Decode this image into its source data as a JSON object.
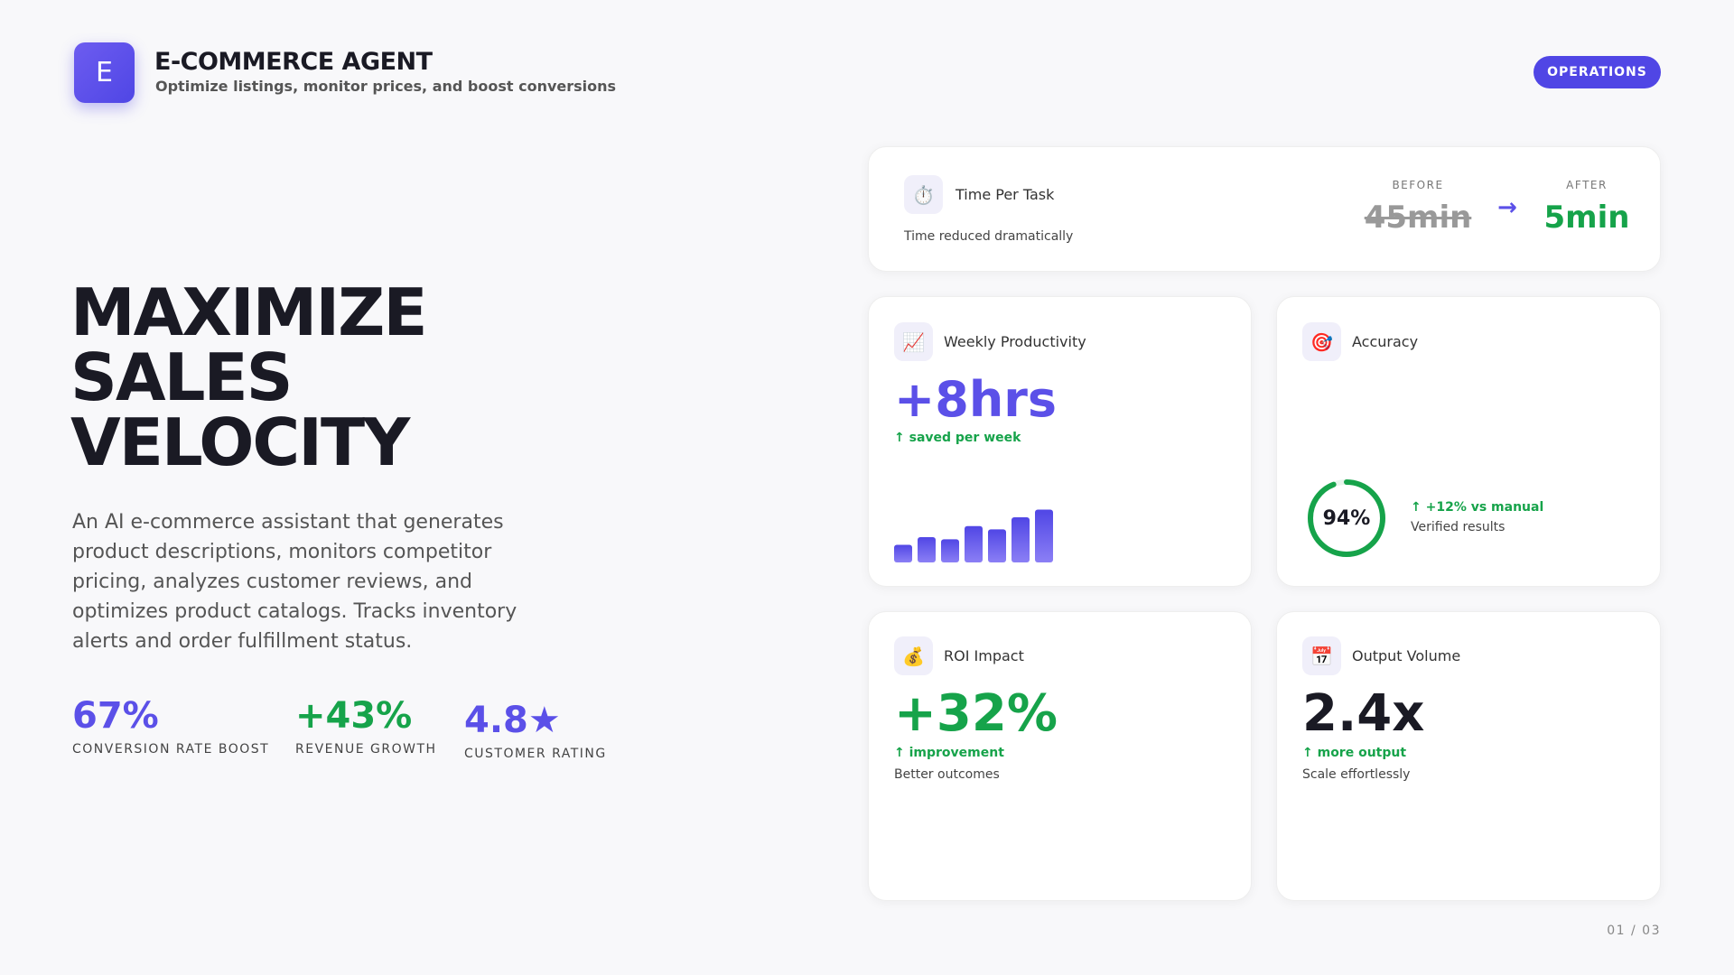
{
  "header": {
    "logo": "E",
    "title": "E-COMMERCE AGENT",
    "subtitle": "Optimize listings, monitor prices, and boost conversions",
    "badge": "OPERATIONS"
  },
  "hero": {
    "lines": [
      "MAXIMIZE",
      "SALES",
      "VELOCITY"
    ],
    "description": "An AI e-commerce assistant that generates product descriptions, monitors competitor pricing, analyzes customer reviews, and optimizes product catalogs. Tracks inventory alerts and order fulfillment status.",
    "stats": [
      {
        "value": "67%",
        "label": "CONVERSION RATE BOOST"
      },
      {
        "value": "+43%",
        "label": "REVENUE GROWTH"
      },
      {
        "value": "4.8★",
        "label": "CUSTOMER RATING"
      }
    ]
  },
  "time_card": {
    "icon": "⏱️",
    "title": "Time Per Task",
    "note": "Time reduced dramatically",
    "before_label": "BEFORE",
    "before": "45min",
    "arrow": "→",
    "after_label": "AFTER",
    "after": "5min"
  },
  "productivity": {
    "icon": "📈",
    "title": "Weekly Productivity",
    "value": "+8hrs",
    "note": "↑ saved per week",
    "bars": [
      16,
      23,
      21,
      33,
      30,
      41,
      48
    ]
  },
  "accuracy": {
    "icon": "🎯",
    "title": "Accuracy",
    "ring_label": "94%",
    "ring_value": 94,
    "note": "↑ +12% vs manual",
    "detail": "Verified results"
  },
  "roi": {
    "icon": "💰",
    "title": "ROI Impact",
    "value": "+32%",
    "note": "↑ improvement",
    "detail": "Better outcomes"
  },
  "output": {
    "icon": "📅",
    "title": "Output Volume",
    "value": "2.4x",
    "note": "↑ more output",
    "detail": "Scale effortlessly"
  },
  "footer": {
    "page": "01 / 03"
  }
}
